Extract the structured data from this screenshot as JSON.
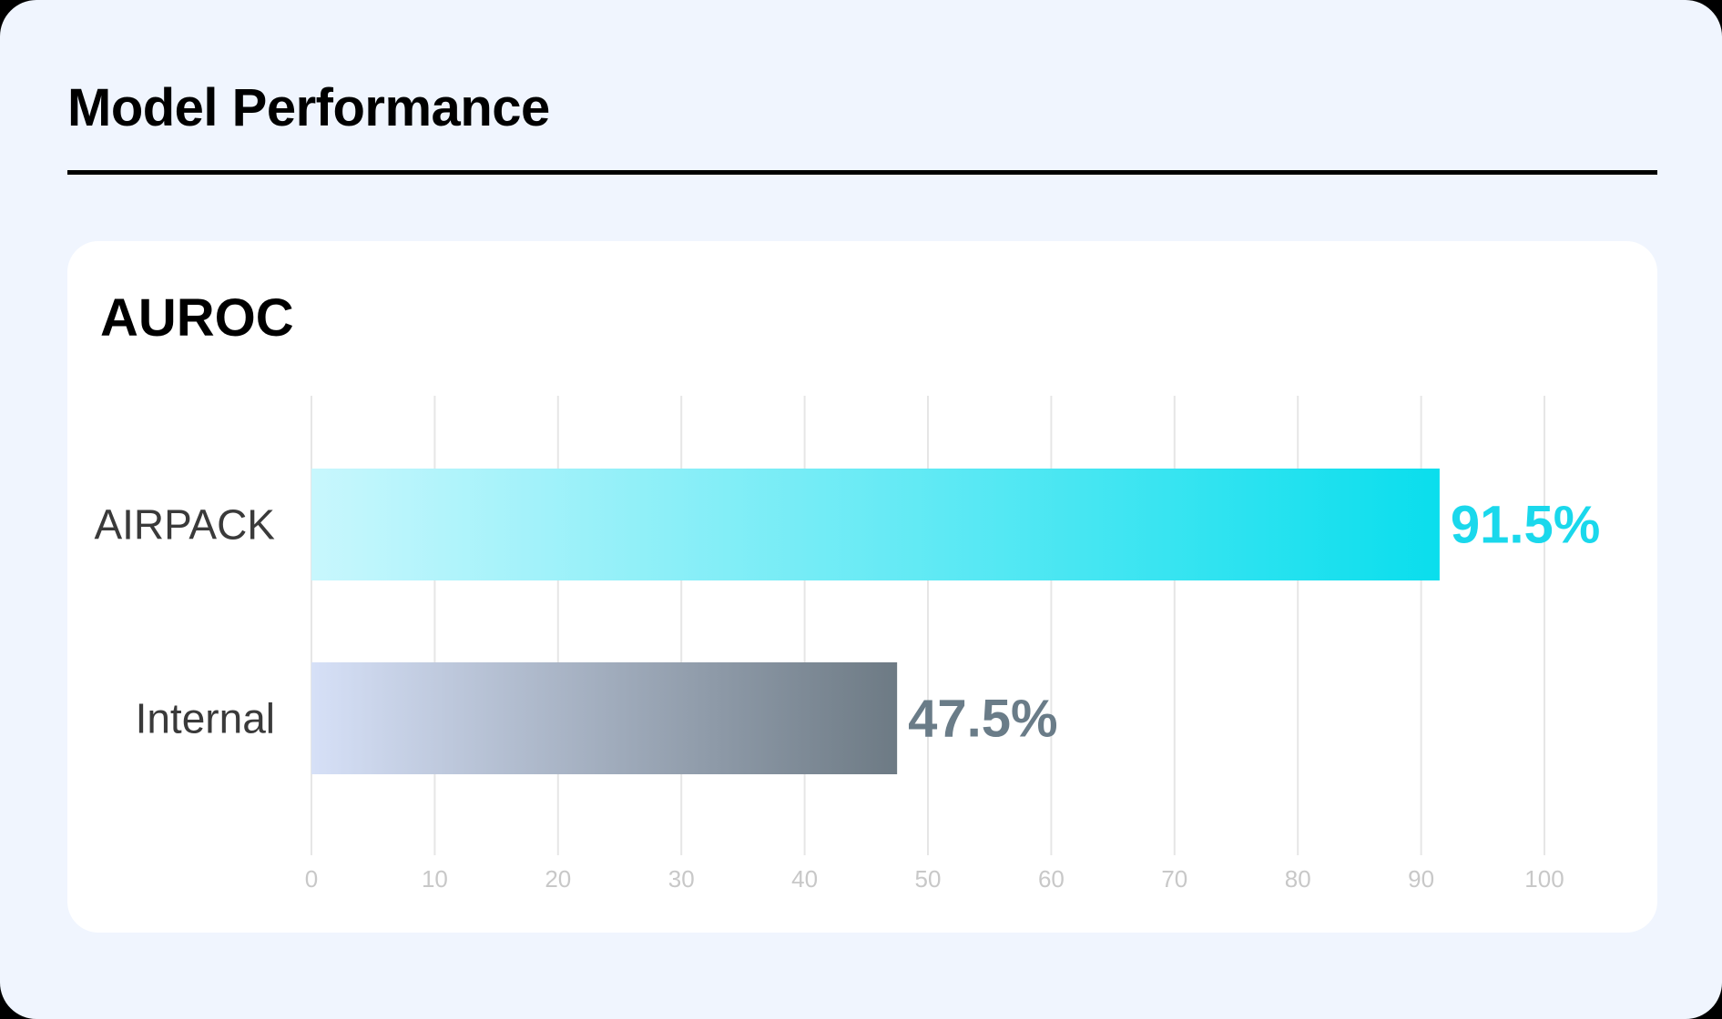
{
  "page": {
    "title": "Model Performance"
  },
  "card": {
    "title": "AUROC"
  },
  "chart_data": {
    "type": "bar",
    "orientation": "horizontal",
    "title": "AUROC",
    "categories": [
      "AIRPACK",
      "Internal"
    ],
    "values": [
      91.5,
      47.5
    ],
    "value_labels": [
      "91.5%",
      "47.5%"
    ],
    "xlim": [
      0,
      100
    ],
    "x_ticks": [
      "0",
      "10",
      "20",
      "30",
      "40",
      "50",
      "60",
      "70",
      "80",
      "90",
      "100"
    ],
    "grid": true,
    "colors": {
      "AIRPACK": {
        "start": "#c8f7fd",
        "end": "#0adeed",
        "label": "#1ad8ec"
      },
      "Internal": {
        "start": "#d6e0f7",
        "end": "#6d7a84",
        "label": "#6a7c88"
      },
      "grid": "#e6e6e6",
      "tick": "#c8c8c8",
      "category": "#3a3a3a"
    }
  }
}
